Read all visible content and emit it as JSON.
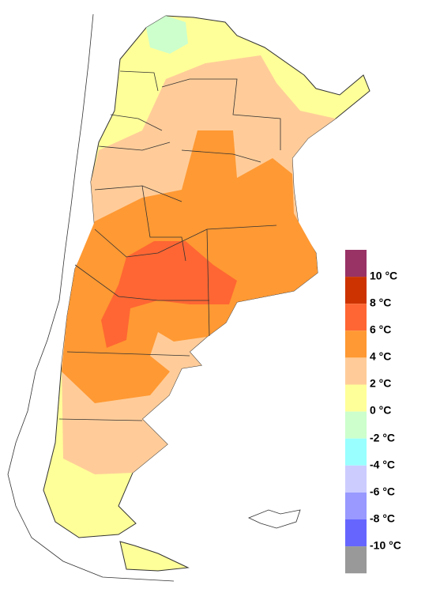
{
  "legend": {
    "labels": [
      "10 °C",
      "8 °C",
      "6 °C",
      "4 °C",
      "2 °C",
      "0 °C",
      "-2 °C",
      "-4 °C",
      "-6 °C",
      "-8 °C",
      "-10 °C"
    ],
    "colors": [
      "#993366",
      "#cc3300",
      "#ff6633",
      "#ff9933",
      "#ffcc99",
      "#ffff99",
      "#ccffcc",
      "#99ffff",
      "#ccccff",
      "#9999ff",
      "#6666ff",
      "#999999"
    ]
  }
}
